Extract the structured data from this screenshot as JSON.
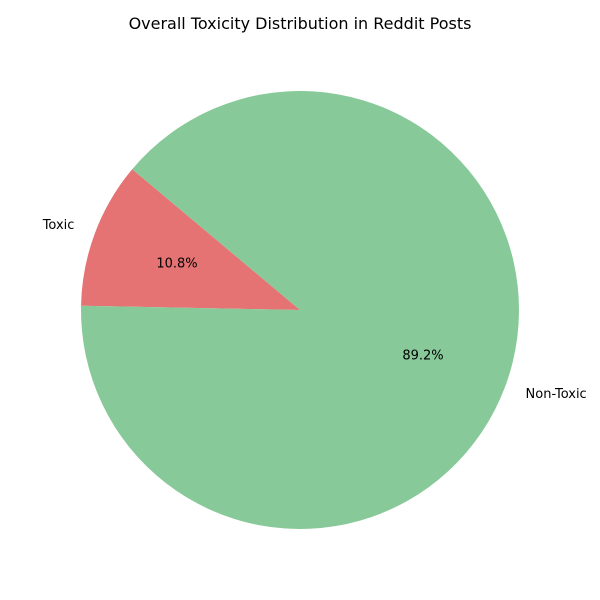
{
  "chart_data": {
    "type": "pie",
    "title": "Overall Toxicity Distribution in Reddit Posts",
    "slices": [
      {
        "label": "Toxic",
        "value": 10.8,
        "pct_label": "10.8%",
        "color": "#e57373"
      },
      {
        "label": "Non-Toxic",
        "value": 89.2,
        "pct_label": "89.2%",
        "color": "#88c999"
      }
    ],
    "start_angle_deg": 140,
    "direction": "counterclockwise",
    "legend": "none"
  }
}
